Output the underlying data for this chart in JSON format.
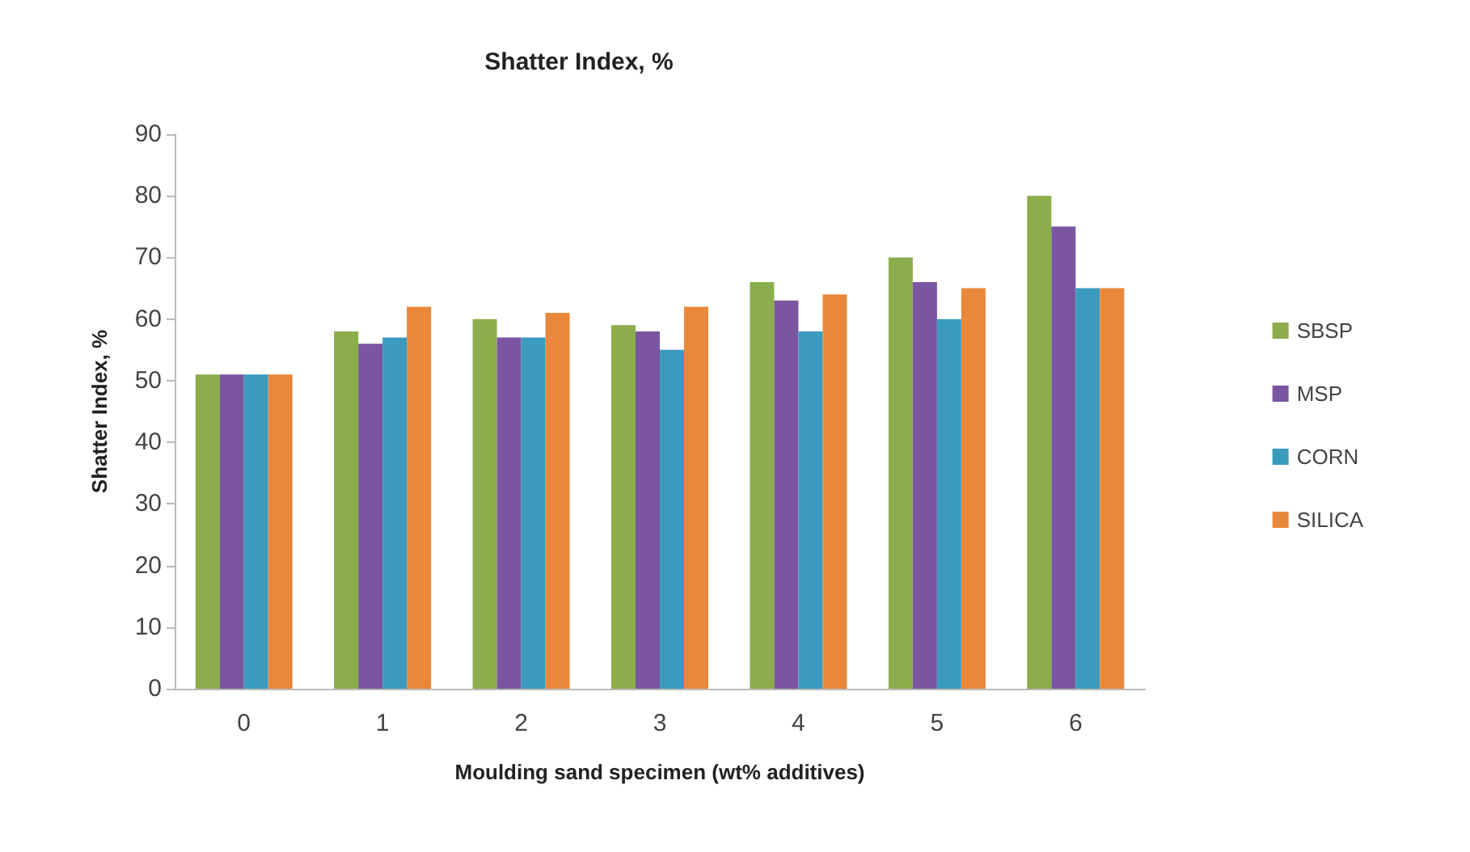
{
  "chart_data": {
    "type": "bar",
    "title": "Shatter Index, %",
    "xlabel": "Moulding sand specimen (wt% additives)",
    "ylabel": "Shatter Index, %",
    "categories": [
      "0",
      "1",
      "2",
      "3",
      "4",
      "5",
      "6"
    ],
    "series": [
      {
        "name": "SBSP",
        "color": "#8cad4b",
        "values": [
          51,
          58,
          60,
          59,
          66,
          70,
          80
        ]
      },
      {
        "name": "MSP",
        "color": "#7a55a0",
        "values": [
          51,
          56,
          57,
          58,
          63,
          66,
          75
        ]
      },
      {
        "name": "CORN",
        "color": "#3a9bbf",
        "values": [
          51,
          57,
          57,
          55,
          58,
          60,
          65
        ]
      },
      {
        "name": "SILICA",
        "color": "#e9883a",
        "values": [
          51,
          62,
          61,
          62,
          64,
          65,
          65
        ]
      }
    ],
    "ylim": [
      0,
      90
    ],
    "yticks": [
      0,
      10,
      20,
      30,
      40,
      50,
      60,
      70,
      80,
      90
    ],
    "grid": false,
    "legend": "right"
  }
}
